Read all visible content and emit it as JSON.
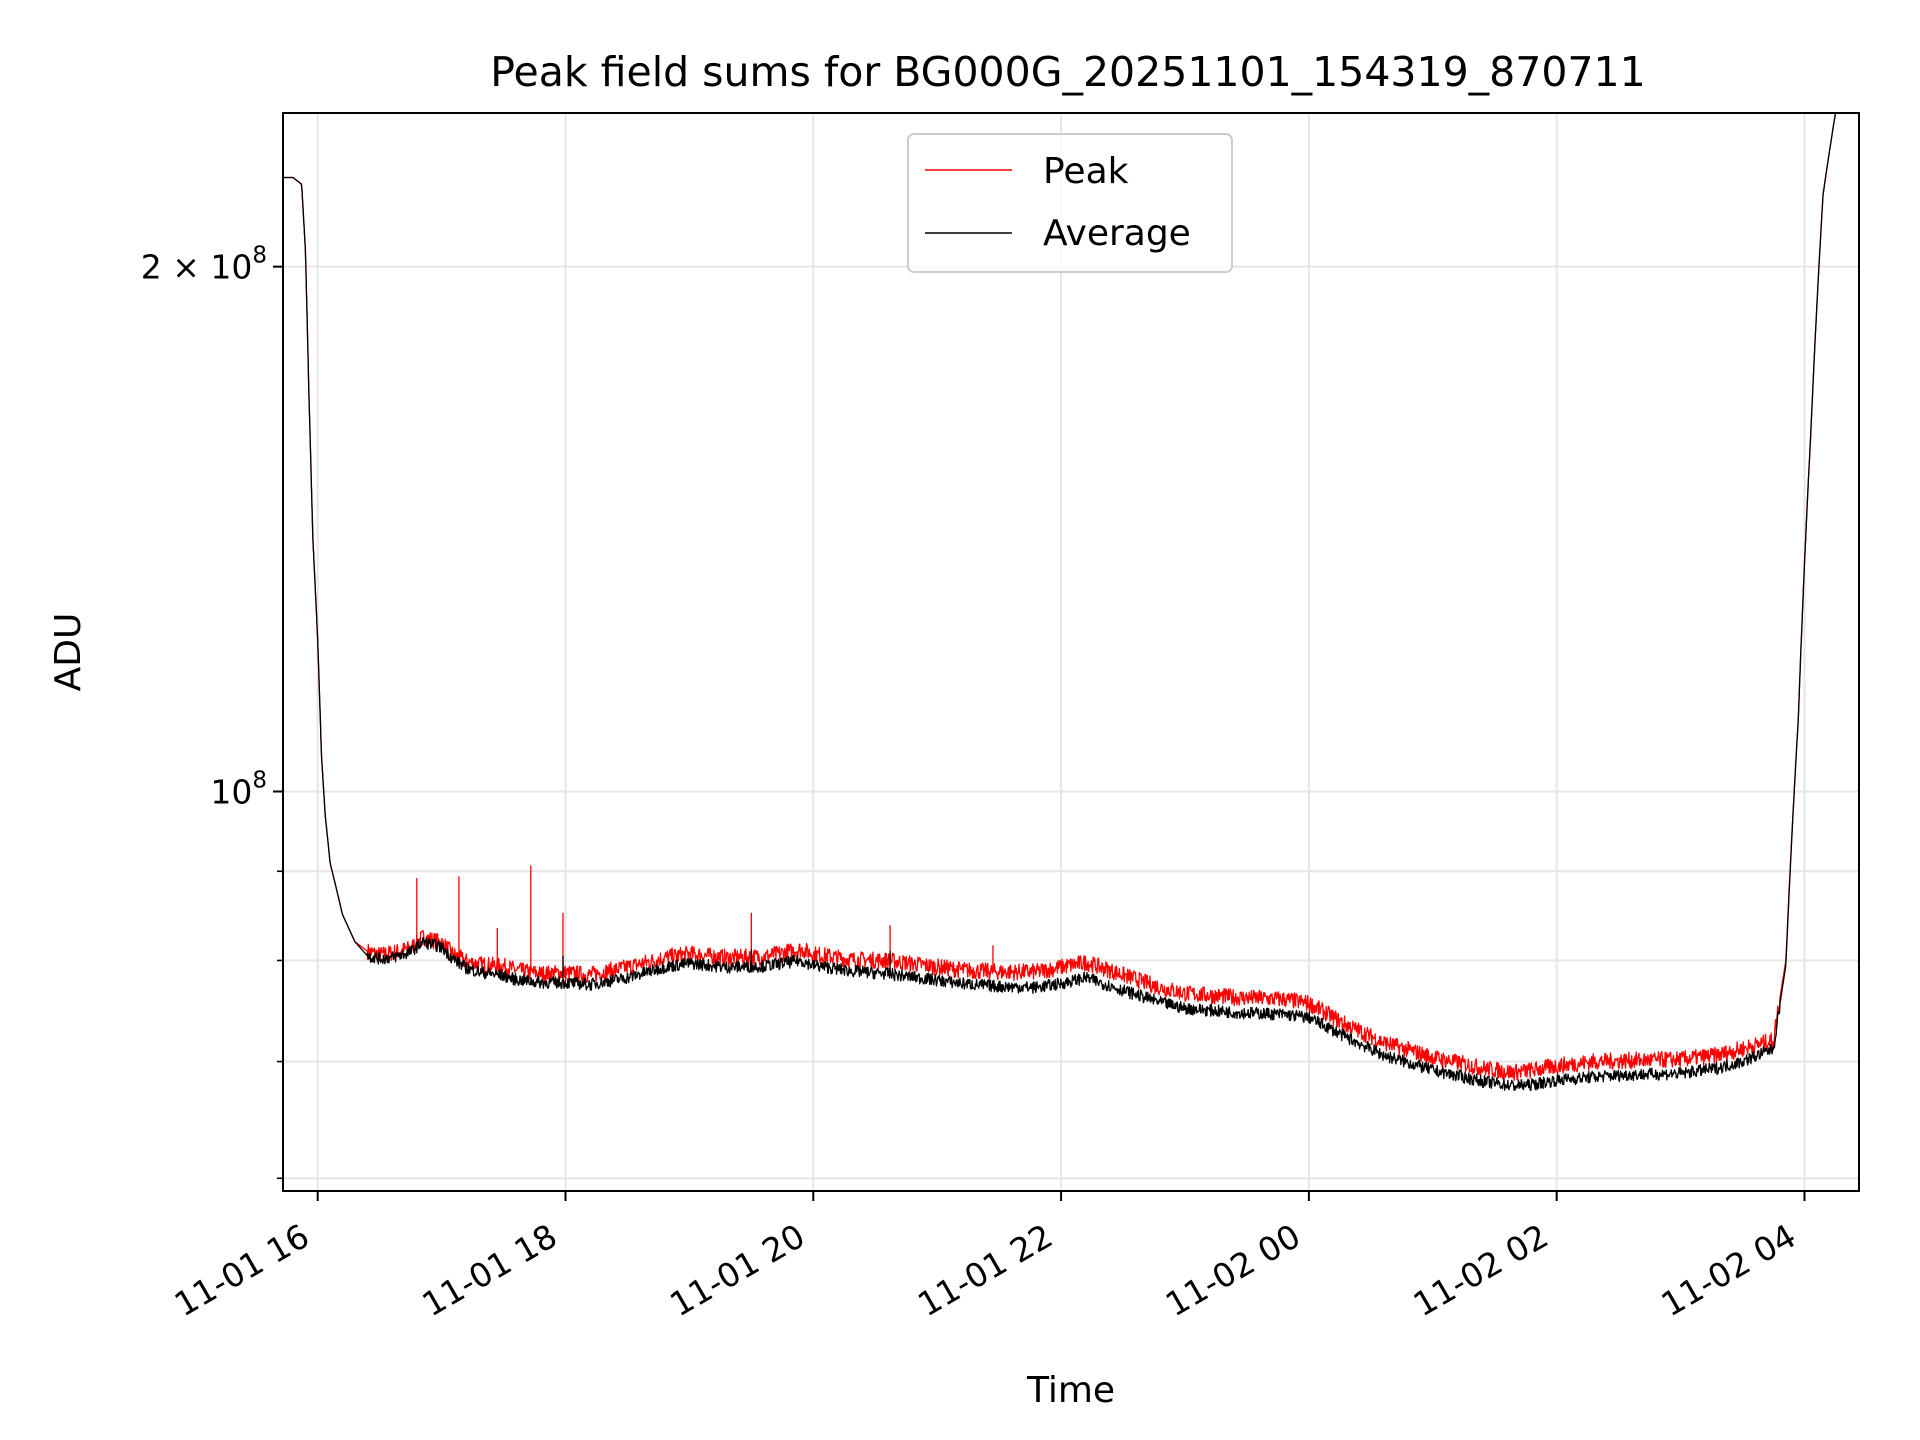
{
  "chart_data": {
    "type": "line",
    "title": "Peak field sums for BG000G_20251101_154319_870711",
    "xlabel": "Time",
    "ylabel": "ADU",
    "y_scale": "log",
    "ylim": [
      59000000,
      245000000
    ],
    "xlim_hours": [
      15.72,
      28.44
    ],
    "x_ticks": [
      {
        "hour": 16,
        "label": "11-01 16"
      },
      {
        "hour": 18,
        "label": "11-01 18"
      },
      {
        "hour": 20,
        "label": "11-01 20"
      },
      {
        "hour": 22,
        "label": "11-01 22"
      },
      {
        "hour": 24,
        "label": "11-02 00"
      },
      {
        "hour": 26,
        "label": "11-02 02"
      },
      {
        "hour": 28,
        "label": "11-02 04"
      }
    ],
    "y_major_ticks": [
      {
        "value": 100000000,
        "base": "10",
        "exp": "8"
      },
      {
        "value": 200000000,
        "base": "2 × 10",
        "exp": "8"
      }
    ],
    "y_minor_ticks": [
      60000000,
      70000000,
      80000000,
      90000000
    ],
    "grid": true,
    "legend": {
      "position": "top-center",
      "entries": [
        "Peak",
        "Average"
      ]
    },
    "series": [
      {
        "name": "Peak",
        "color": "#ff0000",
        "x_hours": [
          15.72,
          15.8,
          15.87,
          15.9,
          15.93,
          15.96,
          16.0,
          16.03,
          16.06,
          16.1,
          16.2,
          16.3,
          16.4,
          16.5,
          16.6,
          16.75,
          16.85,
          17.0,
          17.1,
          17.2,
          17.3,
          17.5,
          17.6,
          17.8,
          18.0,
          18.2,
          18.5,
          18.8,
          19.0,
          19.3,
          19.6,
          19.9,
          20.0,
          20.3,
          20.6,
          20.9,
          21.2,
          21.5,
          21.8,
          22.0,
          22.2,
          22.5,
          22.8,
          23.0,
          23.4,
          23.8,
          24.0,
          24.3,
          24.6,
          25.0,
          25.4,
          25.65,
          25.8,
          26.0,
          26.3,
          26.6,
          27.0,
          27.3,
          27.5,
          27.75,
          27.85,
          27.95,
          28.05,
          28.15,
          28.25,
          28.3
        ],
        "y_millions": [
          225,
          225,
          223,
          205,
          168,
          140,
          122,
          105,
          97,
          91,
          85,
          82,
          81,
          80.6,
          80.8,
          81.3,
          82.5,
          81.9,
          80.6,
          79.9,
          79.6,
          79.4,
          79.0,
          78.6,
          78.7,
          78.5,
          79.3,
          80.3,
          80.7,
          80.3,
          80.4,
          81.2,
          80.7,
          80.1,
          80.0,
          79.5,
          79.0,
          78.8,
          78.8,
          79.3,
          79.8,
          78.5,
          77.2,
          76.6,
          76.2,
          76.0,
          75.6,
          73.5,
          71.8,
          70.4,
          69.4,
          69.0,
          69.2,
          69.6,
          70.0,
          70.1,
          70.2,
          70.6,
          71.2,
          72.0,
          80.0,
          110.0,
          160.0,
          220.0,
          245.0,
          246.0
        ],
        "spikes": [
          {
            "hour": 16.8,
            "y_millions": 89.2
          },
          {
            "hour": 17.14,
            "y_millions": 89.4
          },
          {
            "hour": 17.45,
            "y_millions": 83.5
          },
          {
            "hour": 17.72,
            "y_millions": 90.7
          },
          {
            "hour": 17.98,
            "y_millions": 85.2
          },
          {
            "hour": 19.5,
            "y_millions": 85.2
          },
          {
            "hour": 20.62,
            "y_millions": 83.8
          },
          {
            "hour": 21.45,
            "y_millions": 81.6
          }
        ]
      },
      {
        "name": "Average",
        "color": "#000000",
        "x_hours": [
          15.72,
          15.8,
          15.87,
          15.9,
          15.93,
          15.96,
          16.0,
          16.03,
          16.06,
          16.1,
          16.2,
          16.3,
          16.4,
          16.5,
          16.6,
          16.75,
          16.85,
          17.0,
          17.1,
          17.2,
          17.3,
          17.5,
          17.6,
          17.8,
          18.0,
          18.2,
          18.5,
          18.8,
          19.0,
          19.3,
          19.6,
          19.9,
          20.0,
          20.3,
          20.6,
          20.9,
          21.2,
          21.5,
          21.8,
          22.0,
          22.2,
          22.5,
          22.8,
          23.0,
          23.4,
          23.8,
          24.0,
          24.3,
          24.6,
          25.0,
          25.4,
          25.65,
          25.8,
          26.0,
          26.3,
          26.6,
          27.0,
          27.3,
          27.5,
          27.75,
          27.85,
          27.95,
          28.05,
          28.15,
          28.25,
          28.3
        ],
        "y_millions": [
          225,
          225,
          223,
          205,
          168,
          140,
          122,
          105,
          97,
          91,
          85,
          82,
          80.5,
          80.2,
          80.3,
          80.9,
          82.0,
          81.4,
          80.1,
          79.2,
          78.8,
          78.4,
          78.0,
          77.7,
          77.7,
          77.5,
          78.2,
          79.3,
          79.7,
          79.3,
          79.4,
          80.0,
          79.5,
          78.9,
          78.6,
          78.1,
          77.6,
          77.3,
          77.2,
          77.6,
          78.2,
          76.9,
          75.7,
          75.1,
          74.7,
          74.5,
          74.2,
          72.3,
          70.6,
          69.2,
          68.2,
          67.8,
          67.9,
          68.3,
          68.6,
          68.8,
          68.9,
          69.4,
          70.0,
          71.2,
          79.5,
          110.0,
          160.0,
          220.0,
          245.0,
          246.0
        ],
        "spikes": [
          {
            "hour": 17.98,
            "y_millions": 80.5
          },
          {
            "hour": 19.5,
            "y_millions": 81.2
          },
          {
            "hour": 20.62,
            "y_millions": 81.0
          }
        ]
      }
    ]
  }
}
